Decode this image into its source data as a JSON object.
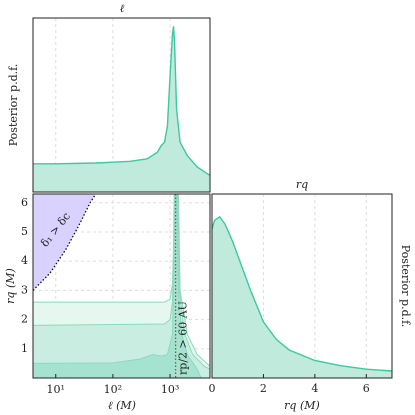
{
  "chart_data": [
    {
      "type": "line",
      "title": "ℓ",
      "ylabel": "Posterior p.d.f.",
      "log_x": true,
      "color": "#3cc9a0",
      "fill": "#bfeadc",
      "xlim": [
        4,
        5000
      ],
      "ylim": [
        0,
        1.05
      ],
      "x": [
        4,
        10,
        50,
        100,
        200,
        400,
        600,
        700,
        800,
        900,
        1000,
        1100,
        1150,
        1200,
        1300,
        1500,
        2000,
        3000,
        5000
      ],
      "values": [
        0.17,
        0.17,
        0.175,
        0.18,
        0.185,
        0.2,
        0.24,
        0.28,
        0.3,
        0.4,
        0.7,
        0.95,
        1.0,
        0.9,
        0.5,
        0.3,
        0.22,
        0.15,
        0.1
      ]
    },
    {
      "type": "contour",
      "xlabel": "ℓ (M)",
      "ylabel": "rq (M)",
      "log_x": true,
      "grid": true,
      "xlim": [
        4,
        5000
      ],
      "ylim": [
        0,
        6.3
      ],
      "xticks": [
        {
          "value": 10,
          "label": "10¹"
        },
        {
          "value": 100,
          "label": "10²"
        },
        {
          "value": 1000,
          "label": "10³"
        }
      ],
      "yticks": [
        1,
        2,
        3,
        4,
        5,
        6
      ],
      "contours": [
        {
          "color": "#e6f7f0",
          "x": [
            4,
            4,
            800,
            1000,
            1100,
            1150,
            1180,
            1400,
            1500,
            2000,
            3000,
            5000,
            5000
          ],
          "y": [
            0,
            2.6,
            2.6,
            2.7,
            3.2,
            4.5,
            6.3,
            6.3,
            3,
            1.5,
            0.8,
            0.4,
            0
          ]
        },
        {
          "color": "#c9eee1",
          "x": [
            4,
            4,
            800,
            1000,
            1100,
            1170,
            1200,
            1350,
            1450,
            1800,
            2500,
            4000,
            5000,
            5000
          ],
          "y": [
            0,
            1.8,
            1.85,
            2.0,
            2.6,
            4.5,
            6.3,
            6.3,
            3,
            1.5,
            0.8,
            0.4,
            0.3,
            0
          ]
        },
        {
          "color": "#a5e2cf",
          "x": [
            4,
            4,
            100,
            300,
            500,
            700,
            900,
            1100,
            1180,
            1220,
            1300,
            1400,
            1600,
            2000,
            3000,
            3500
          ],
          "y": [
            0,
            0.5,
            0.52,
            0.65,
            0.8,
            0.75,
            0.8,
            1.5,
            4,
            6.3,
            6.3,
            3,
            1.5,
            0.8,
            0.3,
            0
          ]
        }
      ],
      "exclusion": {
        "label": "δ₁ > δc",
        "color": "#d9d2ff",
        "x": [
          4,
          8,
          15,
          25,
          40,
          50
        ],
        "y": [
          3.0,
          3.6,
          4.4,
          5.2,
          6.0,
          6.3
        ]
      },
      "vline": {
        "label": "rp/2 > 60 AU",
        "color": "#a0522d",
        "x": 1250
      }
    },
    {
      "type": "line",
      "title": "rq",
      "xlabel": "rq (M)",
      "ylabel": "Posterior p.d.f.",
      "color": "#3cc9a0",
      "fill": "#bfeadc",
      "grid": true,
      "xlim": [
        0,
        7
      ],
      "ylim": [
        0,
        1.05
      ],
      "xticks": [
        0,
        2,
        4,
        6
      ],
      "x": [
        0,
        0.1,
        0.3,
        0.5,
        0.8,
        1,
        1.5,
        2,
        2.5,
        3,
        4,
        5,
        6,
        7
      ],
      "values": [
        0.85,
        0.9,
        0.92,
        0.88,
        0.78,
        0.7,
        0.5,
        0.32,
        0.22,
        0.16,
        0.1,
        0.07,
        0.05,
        0.04
      ]
    }
  ]
}
